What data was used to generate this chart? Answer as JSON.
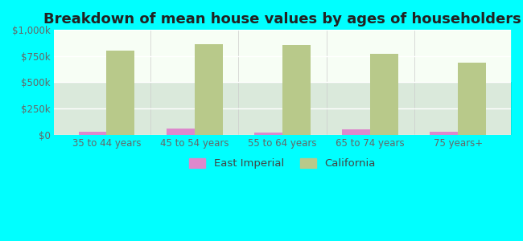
{
  "categories": [
    "35 to 44 years",
    "45 to 54 years",
    "55 to 64 years",
    "65 to 74 years",
    "75 years+"
  ],
  "east_imperial": [
    30000,
    55000,
    18000,
    52000,
    28000
  ],
  "california": [
    800000,
    865000,
    858000,
    775000,
    690000
  ],
  "east_imperial_color": "#dd88cc",
  "california_color": "#b8c98a",
  "title": "Breakdown of mean house values by ages of householders",
  "ylabel_ticks": [
    "$0",
    "$250k",
    "$500k",
    "$750k",
    "$1,000k"
  ],
  "ytick_vals": [
    0,
    250000,
    500000,
    750000,
    1000000
  ],
  "ylim": [
    0,
    1000000
  ],
  "background_color": "#00ffff",
  "plot_bg_top": "#e8f5e0",
  "plot_bg_bottom": "#f8fff5",
  "bar_width": 0.32,
  "legend_labels": [
    "East Imperial",
    "California"
  ],
  "title_fontsize": 13,
  "tick_fontsize": 8.5,
  "legend_fontsize": 9.5
}
